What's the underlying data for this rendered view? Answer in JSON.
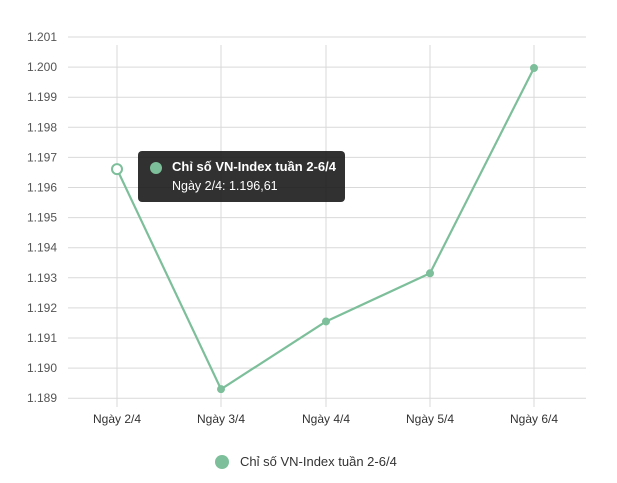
{
  "chart_data": {
    "type": "line",
    "categories": [
      "Ngày 2/4",
      "Ngày 3/4",
      "Ngày 4/4",
      "Ngày 5/4",
      "Ngày 6/4"
    ],
    "series": [
      {
        "name": "Chỉ số VN-Index tuần 2-6/4",
        "values": [
          1196.61,
          1189.3,
          1191.55,
          1193.15,
          1199.97
        ]
      }
    ],
    "y_ticks": [
      "1.189",
      "1.190",
      "1.191",
      "1.192",
      "1.193",
      "1.194",
      "1.195",
      "1.196",
      "1.197",
      "1.198",
      "1.199",
      "1.200",
      "1.201"
    ],
    "ylim": [
      1188.95,
      1201.0
    ],
    "grid": true,
    "legend": "bottom-center",
    "series_color": "#7dbf9a",
    "tooltip": {
      "title": "Chỉ số VN-Index tuần 2-6/4",
      "text": "Ngày 2/4: 1.196,61"
    }
  }
}
